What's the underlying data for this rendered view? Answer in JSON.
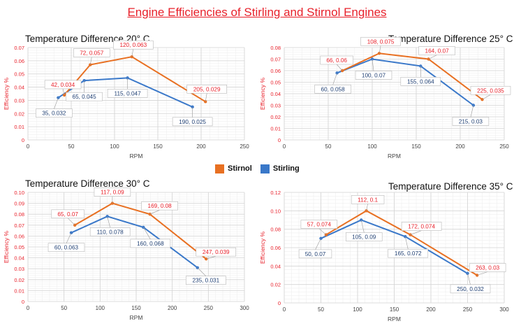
{
  "title": "Engine Efficiencies of Stirling and Stirnol Engines",
  "legend": {
    "stirnol": {
      "label": "Stirnol",
      "color": "#e87022"
    },
    "stirling": {
      "label": "Stirling",
      "color": "#3a78c9"
    }
  },
  "chart_data": [
    {
      "type": "line",
      "title": "Temperature Difference 20° C",
      "xlabel": "RPM",
      "ylabel": "Efficiency %",
      "xlim": [
        0,
        250
      ],
      "xstep": 50,
      "ylim": [
        0,
        0.07
      ],
      "ystep": 0.01,
      "grid": true,
      "series": [
        {
          "name": "Stirnol",
          "points": [
            {
              "x": 42,
              "y": 0.034,
              "label": "42, 0.034"
            },
            {
              "x": 72,
              "y": 0.057,
              "label": "72, 0.057"
            },
            {
              "x": 120,
              "y": 0.063,
              "label": "120, 0.063"
            },
            {
              "x": 205,
              "y": 0.029,
              "label": "205, 0.029"
            }
          ]
        },
        {
          "name": "Stirling",
          "points": [
            {
              "x": 35,
              "y": 0.032,
              "label": "35, 0.032"
            },
            {
              "x": 65,
              "y": 0.045,
              "label": "65, 0.045"
            },
            {
              "x": 115,
              "y": 0.047,
              "label": "115, 0.047"
            },
            {
              "x": 190,
              "y": 0.025,
              "label": "190, 0.025"
            }
          ]
        }
      ]
    },
    {
      "type": "line",
      "title": "Temperature Difference 25° C",
      "xlabel": "RPM",
      "ylabel": "Efficiency %",
      "xlim": [
        0,
        250
      ],
      "xstep": 50,
      "ylim": [
        0,
        0.08
      ],
      "ystep": 0.01,
      "grid": true,
      "series": [
        {
          "name": "Stirnol",
          "points": [
            {
              "x": 66,
              "y": 0.06,
              "label": "66, 0.06"
            },
            {
              "x": 108,
              "y": 0.075,
              "label": "108, 0.075"
            },
            {
              "x": 164,
              "y": 0.07,
              "label": "164, 0.07"
            },
            {
              "x": 225,
              "y": 0.035,
              "label": "225, 0.035"
            }
          ]
        },
        {
          "name": "Stirling",
          "points": [
            {
              "x": 60,
              "y": 0.058,
              "label": "60, 0.058"
            },
            {
              "x": 100,
              "y": 0.07,
              "label": "100, 0.07"
            },
            {
              "x": 155,
              "y": 0.064,
              "label": "155, 0.064"
            },
            {
              "x": 215,
              "y": 0.03,
              "label": "215, 0.03"
            }
          ]
        }
      ]
    },
    {
      "type": "line",
      "title": "Temperature Difference 30° C",
      "xlabel": "RPM",
      "ylabel": "Efficiency %",
      "xlim": [
        0,
        300
      ],
      "xstep": 50,
      "ylim": [
        0,
        0.1
      ],
      "ystep": 0.01,
      "grid": true,
      "series": [
        {
          "name": "Stirnol",
          "points": [
            {
              "x": 65,
              "y": 0.07,
              "label": "65, 0.07"
            },
            {
              "x": 117,
              "y": 0.09,
              "label": "117, 0.09"
            },
            {
              "x": 169,
              "y": 0.08,
              "label": "169, 0.08"
            },
            {
              "x": 247,
              "y": 0.039,
              "label": "247, 0.039"
            }
          ]
        },
        {
          "name": "Stirling",
          "points": [
            {
              "x": 60,
              "y": 0.063,
              "label": "60, 0.063"
            },
            {
              "x": 110,
              "y": 0.078,
              "label": "110, 0.078"
            },
            {
              "x": 160,
              "y": 0.068,
              "label": "160, 0.068"
            },
            {
              "x": 235,
              "y": 0.031,
              "label": "235, 0.031"
            }
          ]
        }
      ]
    },
    {
      "type": "line",
      "title": "Temperature Difference 35° C",
      "xlabel": "RPM",
      "ylabel": "Efficiency %",
      "xlim": [
        0,
        300
      ],
      "xstep": 50,
      "ylim": [
        0,
        0.12
      ],
      "ystep": 0.02,
      "grid": true,
      "series": [
        {
          "name": "Stirnol",
          "points": [
            {
              "x": 57,
              "y": 0.074,
              "label": "57, 0.074"
            },
            {
              "x": 112,
              "y": 0.1,
              "label": "112, 0.1"
            },
            {
              "x": 172,
              "y": 0.074,
              "label": "172, 0.074"
            },
            {
              "x": 263,
              "y": 0.03,
              "label": "263, 0.03"
            }
          ]
        },
        {
          "name": "Stirling",
          "points": [
            {
              "x": 50,
              "y": 0.07,
              "label": "50, 0.07"
            },
            {
              "x": 105,
              "y": 0.09,
              "label": "105, 0.09"
            },
            {
              "x": 165,
              "y": 0.072,
              "label": "165, 0.072"
            },
            {
              "x": 250,
              "y": 0.032,
              "label": "250, 0.032"
            }
          ]
        }
      ]
    }
  ]
}
